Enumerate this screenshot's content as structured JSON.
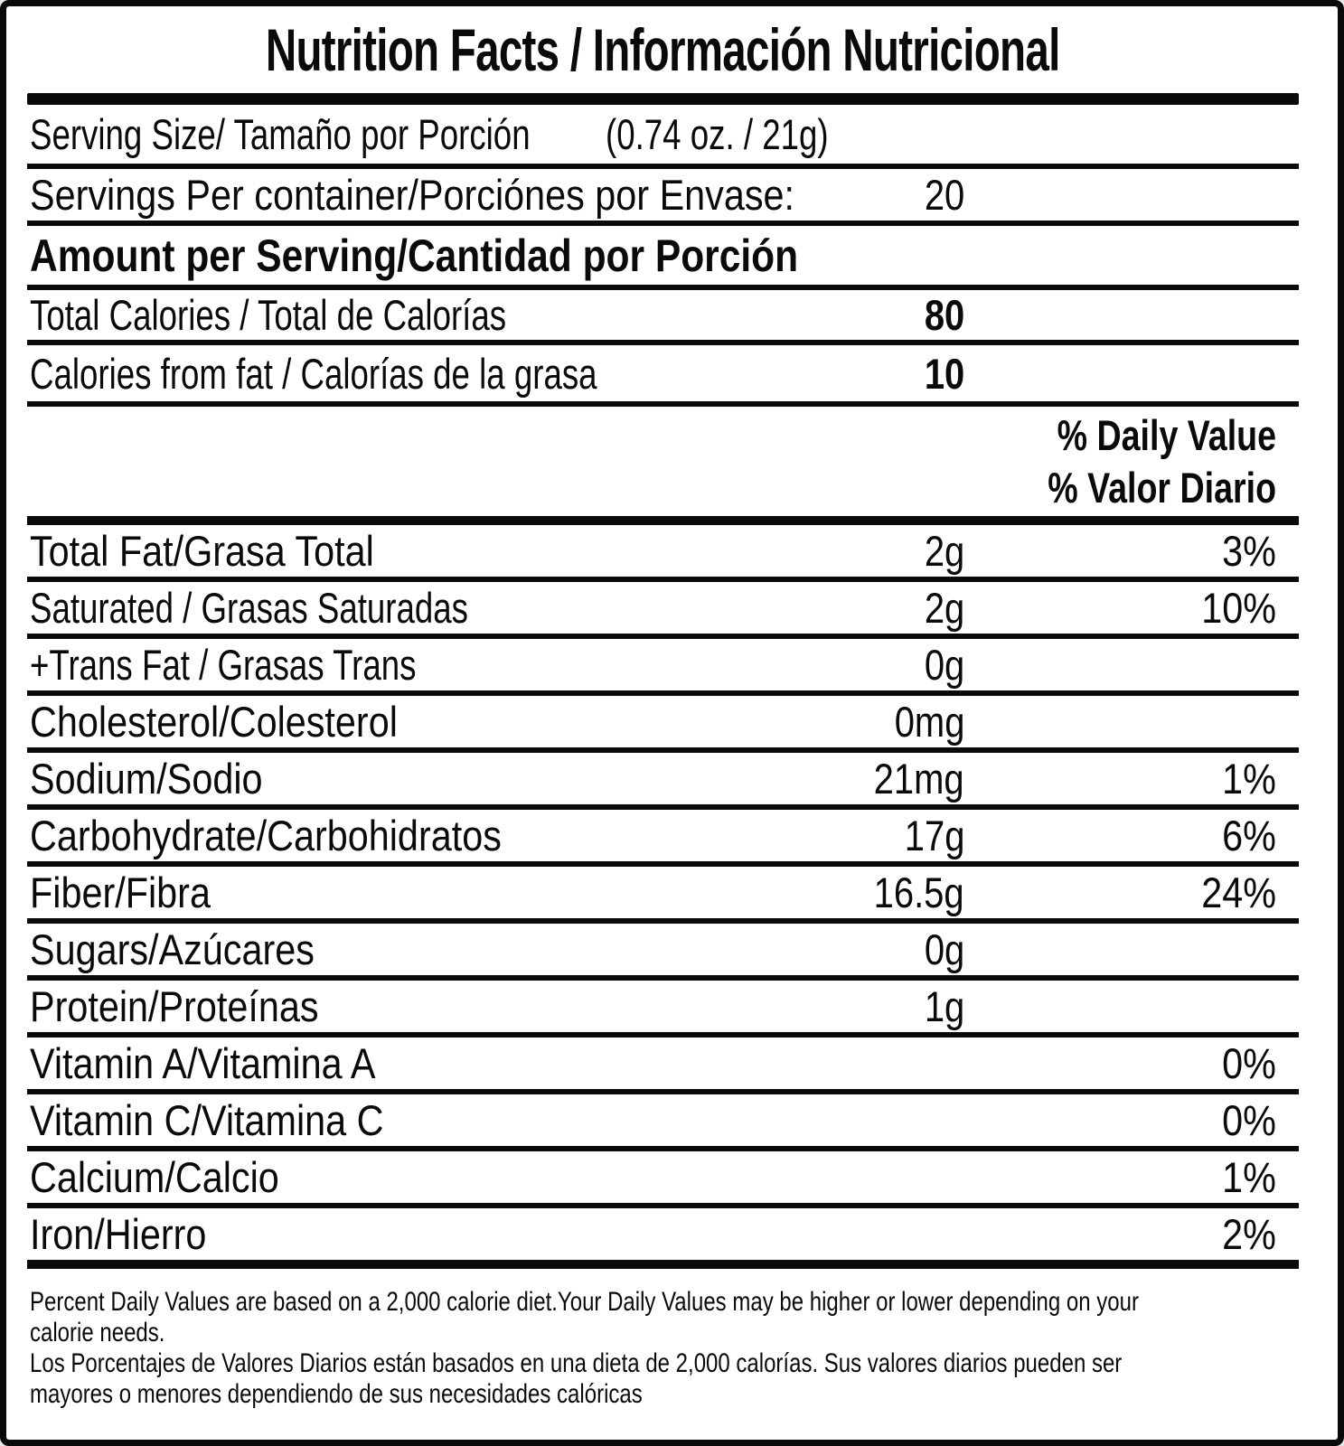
{
  "label": {
    "title": "Nutrition Facts / Información Nutricional",
    "serving_size": {
      "label": "Serving Size/ Tamaño por Porción",
      "value": "(0.74 oz. / 21g)"
    },
    "servings_per_container": {
      "label": "Servings Per container/Porciónes por Envase:",
      "value": "20"
    },
    "amount_per_serving_header": "Amount per Serving/Cantidad por Porción",
    "calories_rows": [
      {
        "label": "Total Calories / Total de Calorías",
        "value": "80"
      },
      {
        "label": "Calories from fat / Calorías de la grasa",
        "value": "10"
      }
    ],
    "daily_value_header_en": "% Daily Value",
    "daily_value_header_es": "% Valor Diario",
    "nutrients": [
      {
        "label": "Total Fat/Grasa Total",
        "amount": "2g",
        "dv": "3%"
      },
      {
        "label": "Saturated / Grasas Saturadas",
        "amount": "2g",
        "dv": "10%"
      },
      {
        "label": "+Trans Fat / Grasas Trans",
        "amount": "0g",
        "dv": ""
      },
      {
        "label": "Cholesterol/Colesterol",
        "amount": "0mg",
        "dv": ""
      },
      {
        "label": "Sodium/Sodio",
        "amount": "21mg",
        "dv": "1%"
      },
      {
        "label": "Carbohydrate/Carbohidratos",
        "amount": "17g",
        "dv": "6%"
      },
      {
        "label": "Fiber/Fibra",
        "amount": "16.5g",
        "dv": "24%"
      },
      {
        "label": "Sugars/Azúcares",
        "amount": "0g",
        "dv": ""
      },
      {
        "label": "Protein/Proteínas",
        "amount": "1g",
        "dv": ""
      },
      {
        "label": "Vitamin A/Vitamina A",
        "amount": "",
        "dv": "0%"
      },
      {
        "label": "Vitamin C/Vitamina C",
        "amount": "",
        "dv": "0%"
      },
      {
        "label": "Calcium/Calcio",
        "amount": "",
        "dv": "1%"
      },
      {
        "label": "Iron/Hierro",
        "amount": "",
        "dv": "2%"
      }
    ],
    "footnote_en": "Percent Daily Values are based on a 2,000 calorie diet.Your Daily Values may be higher or lower depending on your\ncalorie needs.",
    "footnote_es": "Los Porcentajes de Valores Diarios están basados en una dieta de 2,000 calorías. Sus valores diarios pueden ser\nmayores o menores dependiendo de sus necesidades calóricas"
  },
  "colors": {
    "ink": "#0a0a0a",
    "paper": "#ffffff"
  }
}
